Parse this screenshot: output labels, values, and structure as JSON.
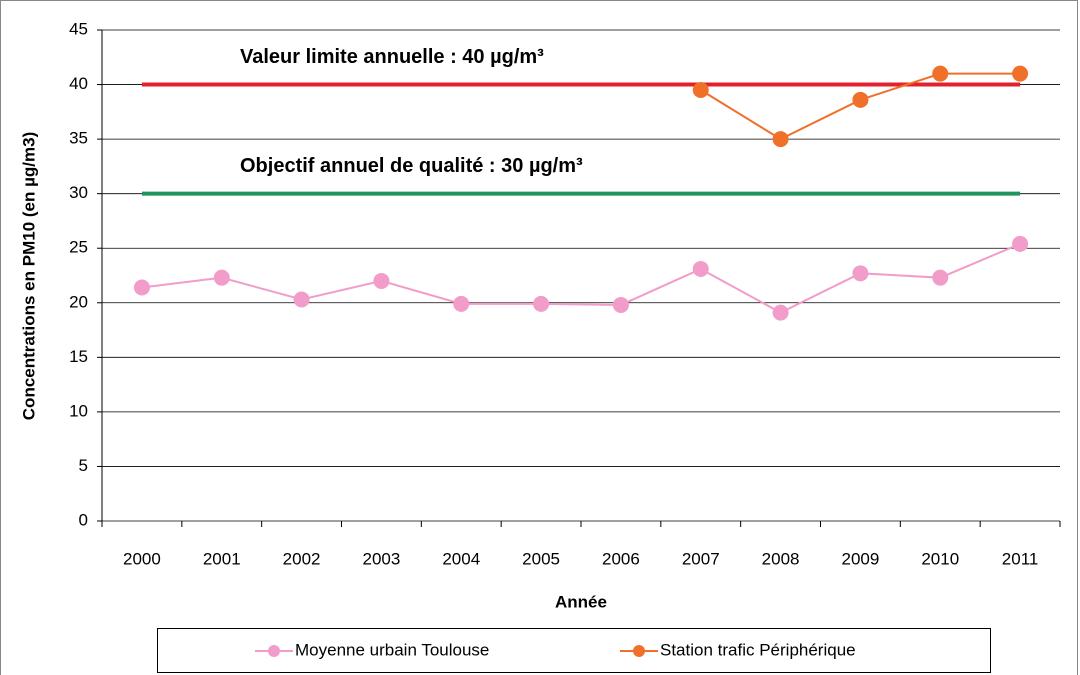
{
  "chart_data": {
    "type": "line",
    "y_axis_label": "Concentrations en PM10 (en µg/m3)",
    "x_axis_label": "Année",
    "categories": [
      "2000",
      "2001",
      "2002",
      "2003",
      "2004",
      "2005",
      "2006",
      "2007",
      "2008",
      "2009",
      "2010",
      "2011"
    ],
    "series": [
      {
        "name": "Moyenne urbain Toulouse",
        "color": "#f29cc9",
        "values": [
          21.4,
          22.3,
          20.3,
          22.0,
          19.9,
          19.9,
          19.8,
          23.1,
          19.1,
          22.7,
          22.3,
          25.4
        ]
      },
      {
        "name": "Station trafic Périphérique",
        "color": "#f07029",
        "values": [
          null,
          null,
          null,
          null,
          null,
          null,
          null,
          39.5,
          35.0,
          38.6,
          41.0,
          41.0
        ]
      }
    ],
    "reference_lines": [
      {
        "label": "Valeur limite annuelle : 40 µg/m³",
        "value": 40,
        "color": "#e3202d"
      },
      {
        "label": "Objectif annuel de qualité : 30 µg/m³",
        "value": 30,
        "color": "#23935e"
      }
    ],
    "ylim": [
      0,
      45
    ],
    "yticks": [
      0,
      5,
      10,
      15,
      20,
      25,
      30,
      35,
      40,
      45
    ],
    "grid": true,
    "legend": "bottom"
  }
}
